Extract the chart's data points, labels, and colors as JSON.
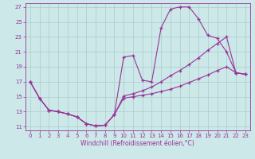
{
  "xlabel": "Windchill (Refroidissement éolien,°C)",
  "background_color": "#cce8e8",
  "grid_color": "#aacccc",
  "line_color": "#993399",
  "xlim": [
    -0.5,
    23.5
  ],
  "ylim": [
    10.5,
    27.5
  ],
  "yticks": [
    11,
    13,
    15,
    17,
    19,
    21,
    23,
    25,
    27
  ],
  "xticks": [
    0,
    1,
    2,
    3,
    4,
    5,
    6,
    7,
    8,
    9,
    10,
    11,
    12,
    13,
    14,
    15,
    16,
    17,
    18,
    19,
    20,
    21,
    22,
    23
  ],
  "line1_x": [
    0,
    1,
    2,
    3,
    4,
    5,
    6,
    7,
    8,
    9,
    10,
    11,
    12,
    13,
    14,
    15,
    16,
    17,
    18,
    19,
    20,
    21,
    22,
    23
  ],
  "line1_y": [
    17.0,
    14.8,
    13.2,
    13.0,
    12.7,
    12.3,
    11.4,
    11.1,
    11.2,
    12.6,
    20.3,
    20.5,
    17.2,
    17.0,
    24.2,
    26.7,
    27.0,
    27.0,
    25.4,
    23.2,
    22.8,
    21.0,
    18.2,
    18.0
  ],
  "line2_x": [
    0,
    1,
    2,
    3,
    4,
    5,
    6,
    7,
    8,
    9,
    10,
    11,
    12,
    13,
    14,
    15,
    16,
    17,
    18,
    19,
    20,
    21,
    22,
    23
  ],
  "line2_y": [
    17.0,
    14.8,
    13.2,
    13.0,
    12.7,
    12.3,
    11.4,
    11.1,
    11.2,
    12.6,
    15.1,
    15.4,
    15.8,
    16.3,
    17.0,
    17.8,
    18.5,
    19.3,
    20.2,
    21.2,
    22.1,
    23.0,
    18.2,
    18.0
  ],
  "line3_x": [
    0,
    1,
    2,
    3,
    4,
    5,
    6,
    7,
    8,
    9,
    10,
    11,
    12,
    13,
    14,
    15,
    16,
    17,
    18,
    19,
    20,
    21,
    22,
    23
  ],
  "line3_y": [
    17.0,
    14.8,
    13.2,
    13.0,
    12.7,
    12.3,
    11.4,
    11.1,
    11.2,
    12.6,
    14.8,
    15.0,
    15.2,
    15.4,
    15.7,
    16.0,
    16.4,
    16.9,
    17.4,
    17.9,
    18.5,
    19.0,
    18.2,
    18.0
  ]
}
